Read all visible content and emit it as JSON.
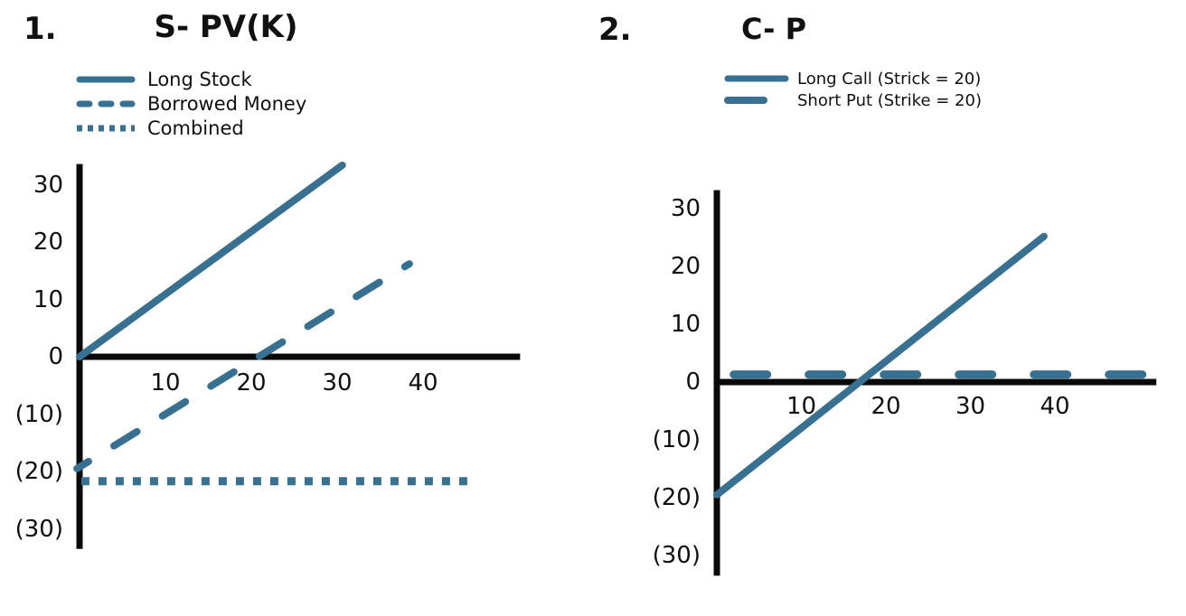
{
  "background": "#ffffff",
  "colors": {
    "line": "#387092",
    "axis": "#0a0a0a",
    "text": "#111111"
  },
  "chart_data": [
    {
      "type": "line",
      "number_label": "1.",
      "title": "S- PV(K)",
      "xlabel": "",
      "ylabel": "",
      "xlim": [
        0,
        51.3
      ],
      "ylim": [
        -33.5,
        33.6
      ],
      "grid": false,
      "legend_position": "top-left",
      "x_ticks": [
        {
          "value": 10,
          "label": "10"
        },
        {
          "value": 20,
          "label": "20"
        },
        {
          "value": 30,
          "label": "30"
        },
        {
          "value": 40,
          "label": "40"
        }
      ],
      "y_ticks": [
        {
          "value": 30,
          "label": "30"
        },
        {
          "value": 20,
          "label": "20"
        },
        {
          "value": 10,
          "label": "10"
        },
        {
          "value": 0,
          "label": "0"
        },
        {
          "value": -10,
          "label": "(10)"
        },
        {
          "value": -20,
          "label": "(20)"
        },
        {
          "value": -30,
          "label": "(30)"
        }
      ],
      "legend": [
        {
          "label": "Long Stock",
          "style": "solid"
        },
        {
          "label": "Borrowed Money",
          "style": "dashed"
        },
        {
          "label": "Combined",
          "style": "dotted"
        }
      ],
      "series": [
        {
          "name": "Long Stock",
          "style": "solid",
          "points": [
            [
              0,
              0
            ],
            [
              30.6,
              33.4
            ]
          ]
        },
        {
          "name": "Borrowed Money",
          "style": "dashed",
          "points": [
            [
              -0.3,
              -19.5
            ],
            [
              38.4,
              16.2
            ]
          ]
        },
        {
          "name": "Combined",
          "style": "dotted",
          "points": [
            [
              0.2,
              -21.7
            ],
            [
              45.8,
              -21.7
            ]
          ]
        }
      ]
    },
    {
      "type": "line",
      "number_label": "2.",
      "title": "C- P",
      "xlabel": "",
      "ylabel": "",
      "xlim": [
        0,
        52
      ],
      "ylim": [
        -33.5,
        33.2
      ],
      "grid": false,
      "legend_position": "top-left",
      "x_ticks": [
        {
          "value": 10,
          "label": "10"
        },
        {
          "value": 20,
          "label": "20"
        },
        {
          "value": 30,
          "label": "30"
        },
        {
          "value": 40,
          "label": "40"
        }
      ],
      "y_ticks": [
        {
          "value": 30,
          "label": "30"
        },
        {
          "value": 20,
          "label": "20"
        },
        {
          "value": 10,
          "label": "10"
        },
        {
          "value": 0,
          "label": "0"
        },
        {
          "value": -10,
          "label": "(10)"
        },
        {
          "value": -20,
          "label": "(20)"
        },
        {
          "value": -30,
          "label": "(30)"
        }
      ],
      "legend": [
        {
          "label": "Long Call (Strick = 20)",
          "style": "solid"
        },
        {
          "label": "Short Put (Strike = 20)",
          "style": "dashed_long"
        }
      ],
      "series": [
        {
          "name": "Long Call",
          "style": "solid",
          "points": [
            [
              0,
              -19.5
            ],
            [
              38.7,
              25.2
            ]
          ]
        },
        {
          "name": "Short Put",
          "style": "dashed_long",
          "points": [
            [
              2.0,
              1.3
            ],
            [
              52,
              1.3
            ]
          ]
        }
      ]
    }
  ]
}
